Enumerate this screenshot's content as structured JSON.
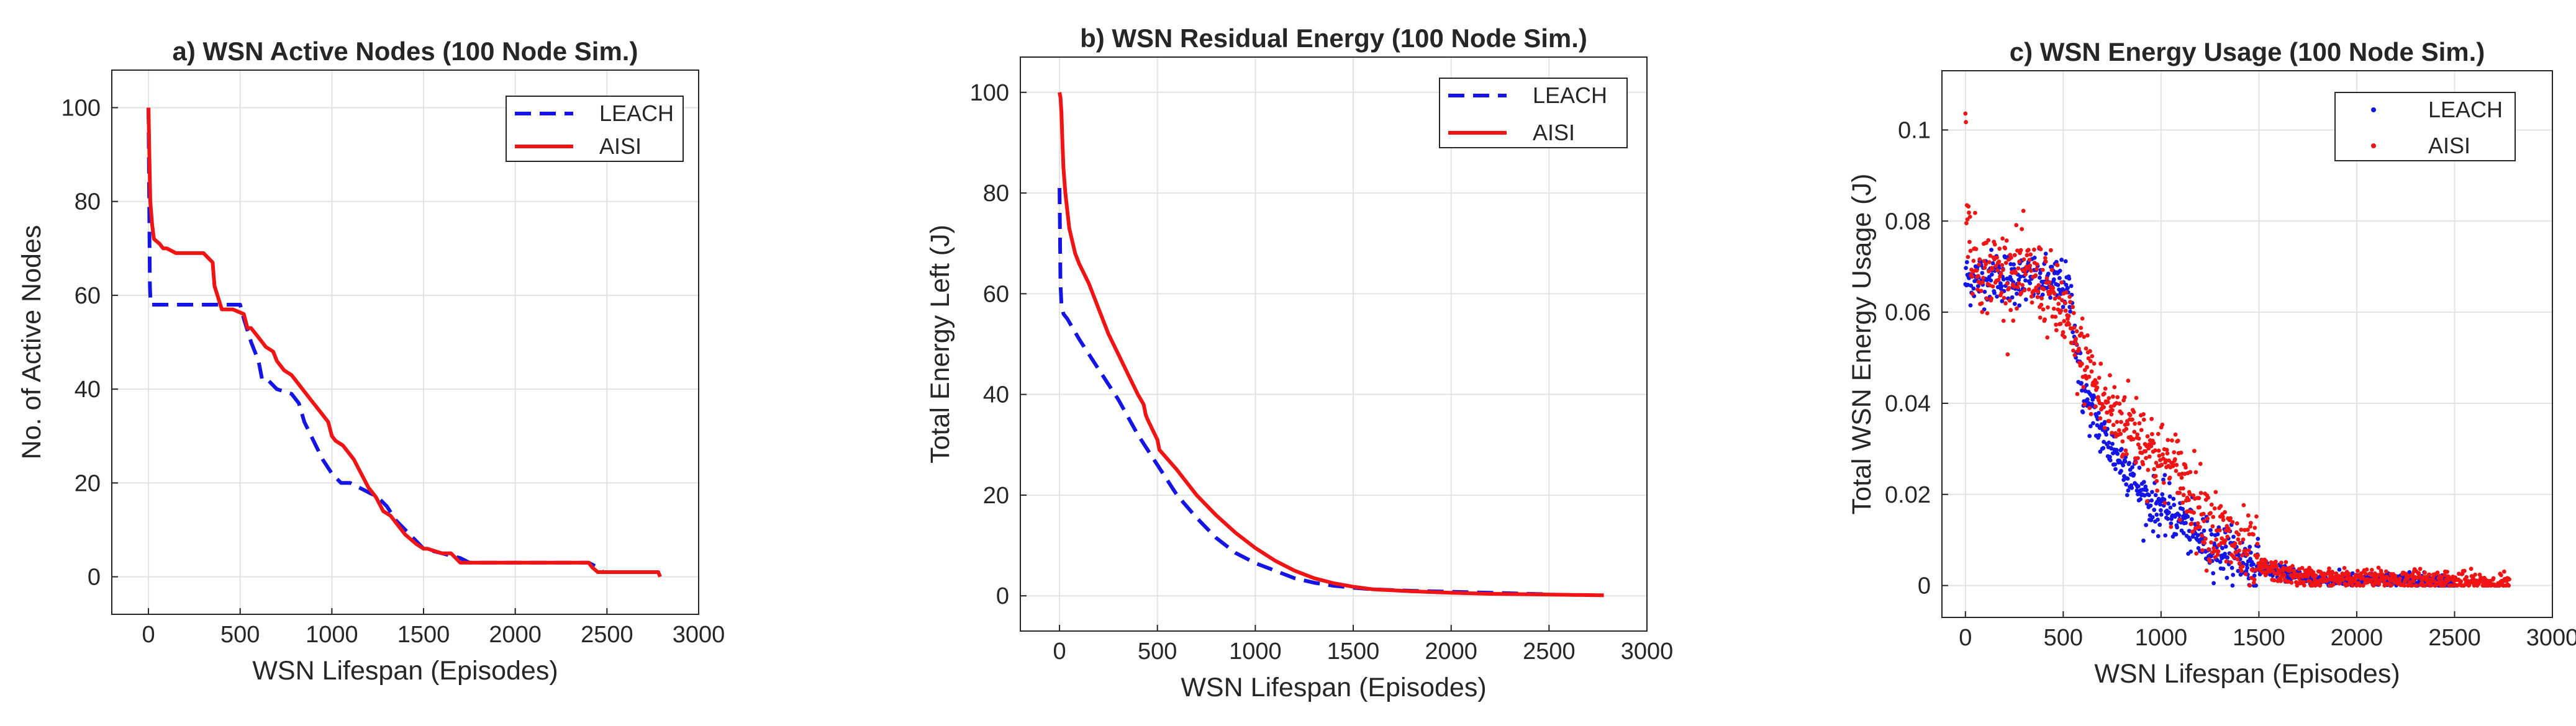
{
  "figure": {
    "colors": {
      "leach": "#1414e6",
      "aisi": "#f01414"
    }
  },
  "chart_data": [
    {
      "type": "line",
      "title": "a) WSN Active Nodes (100 Node Sim.)",
      "xlabel": "WSN Lifespan (Episodes)",
      "ylabel": "No. of Active Nodes",
      "xlim": [
        -200,
        3000
      ],
      "ylim": [
        -8,
        108
      ],
      "xticks": [
        0,
        500,
        1000,
        1500,
        2000,
        2500,
        3000
      ],
      "xtick_labels": [
        "0",
        "500",
        "1000",
        "1500",
        "2000",
        "2500",
        "3000"
      ],
      "yticks": [
        0,
        20,
        40,
        60,
        80,
        100
      ],
      "ytick_labels": [
        "0",
        "20",
        "40",
        "60",
        "80",
        "100"
      ],
      "legend": {
        "position": "top-right",
        "entries": [
          "LEACH",
          "AISI"
        ]
      },
      "series": [
        {
          "name": "LEACH",
          "style": "dashed",
          "x": [
            0,
            2,
            5,
            8,
            12,
            500,
            520,
            560,
            600,
            620,
            650,
            700,
            780,
            820,
            850,
            900,
            950,
            1000,
            1050,
            1100,
            1150,
            1200,
            1250,
            1300,
            1350,
            1400,
            1450,
            1500,
            1600,
            1700,
            1750,
            1800,
            2400,
            2450,
            2480,
            2500
          ],
          "y": [
            100,
            90,
            75,
            62,
            58,
            58,
            55,
            50,
            46,
            42,
            42,
            40,
            39,
            37,
            33,
            29,
            25,
            22,
            20,
            20,
            19,
            18,
            17,
            15,
            12,
            10,
            8,
            6,
            5,
            4,
            3,
            3,
            3,
            2,
            1,
            1
          ]
        },
        {
          "name": "AISI",
          "style": "solid",
          "x": [
            0,
            5,
            10,
            20,
            30,
            60,
            80,
            100,
            150,
            250,
            300,
            350,
            360,
            400,
            460,
            520,
            540,
            560,
            600,
            640,
            680,
            700,
            740,
            780,
            820,
            860,
            900,
            940,
            980,
            1000,
            1020,
            1060,
            1100,
            1120,
            1160,
            1200,
            1240,
            1280,
            1320,
            1360,
            1400,
            1460,
            1500,
            1520,
            1600,
            1650,
            1700,
            1720,
            1760,
            1800,
            2400,
            2420,
            2450,
            2480,
            2780,
            2790
          ],
          "y": [
            100,
            90,
            80,
            75,
            72,
            71,
            70,
            70,
            69,
            69,
            69,
            67,
            62,
            57,
            57,
            56,
            53,
            53,
            51,
            49,
            48,
            46,
            44,
            43,
            41,
            39,
            37,
            35,
            33,
            30,
            29,
            28,
            26,
            25,
            22,
            19,
            17,
            14,
            13,
            11,
            9,
            7,
            6,
            6,
            5,
            5,
            3,
            3,
            3,
            3,
            3,
            2,
            1,
            1,
            1,
            0
          ]
        }
      ]
    },
    {
      "type": "line",
      "title": "b) WSN Residual Energy (100 Node Sim.)",
      "xlabel": "WSN Lifespan (Episodes)",
      "ylabel": "Total Energy Left (J)",
      "xlim": [
        -200,
        3000
      ],
      "ylim": [
        -7,
        107
      ],
      "xticks": [
        0,
        500,
        1000,
        1500,
        2000,
        2500,
        3000
      ],
      "xtick_labels": [
        "0",
        "500",
        "1000",
        "1500",
        "2000",
        "2500",
        "3000"
      ],
      "yticks": [
        0,
        20,
        40,
        60,
        80,
        100
      ],
      "ytick_labels": [
        "0",
        "20",
        "40",
        "60",
        "80",
        "100"
      ],
      "legend": {
        "position": "top-right",
        "entries": [
          "LEACH",
          "AISI"
        ]
      },
      "series": [
        {
          "name": "LEACH",
          "style": "dashed",
          "x": [
            0,
            3,
            5,
            10,
            20,
            40,
            100,
            200,
            300,
            400,
            500,
            600,
            700,
            800,
            900,
            1000,
            1100,
            1200,
            1300,
            1400,
            1500,
            1600,
            1800,
            2000,
            2200,
            2400,
            2500
          ],
          "y": [
            81,
            70,
            62,
            58,
            56,
            55,
            51,
            45,
            39,
            32,
            26,
            20,
            15.5,
            11.5,
            8.5,
            6.5,
            5,
            3.5,
            2.6,
            2,
            1.6,
            1.3,
            1,
            0.8,
            0.6,
            0.4,
            0.3
          ]
        },
        {
          "name": "AISI",
          "style": "solid",
          "x": [
            0,
            5,
            10,
            15,
            20,
            30,
            50,
            80,
            100,
            150,
            200,
            250,
            300,
            350,
            400,
            430,
            440,
            450,
            500,
            510,
            600,
            700,
            800,
            900,
            1000,
            1100,
            1200,
            1300,
            1400,
            1500,
            1600,
            1800,
            2000,
            2200,
            2400,
            2600,
            2780
          ],
          "y": [
            100,
            99,
            96,
            90,
            85,
            80,
            73,
            68,
            66,
            62,
            57,
            52,
            48,
            44,
            40,
            38,
            36,
            35,
            31,
            29,
            25,
            20,
            16,
            12.5,
            9.5,
            7,
            5,
            3.5,
            2.5,
            1.8,
            1.3,
            0.9,
            0.6,
            0.4,
            0.3,
            0.2,
            0.1
          ]
        }
      ]
    },
    {
      "type": "scatter",
      "title": "c) WSN Energy Usage (100 Node Sim.)",
      "xlabel": "WSN Lifespan (Episodes)",
      "ylabel": "Total WSN Energy Usage (J)",
      "xlim": [
        -120,
        3000
      ],
      "ylim": [
        -0.007,
        0.113
      ],
      "xticks": [
        0,
        500,
        1000,
        1500,
        2000,
        2500,
        3000
      ],
      "xtick_labels": [
        "0",
        "500",
        "1000",
        "1500",
        "2000",
        "2500",
        "3000"
      ],
      "yticks": [
        0,
        0.02,
        0.04,
        0.06,
        0.08,
        0.1
      ],
      "ytick_labels": [
        "0",
        "0.02",
        "0.04",
        "0.06",
        "0.08",
        "0.1"
      ],
      "legend": {
        "position": "top-right",
        "entries": [
          "LEACH",
          "AISI"
        ]
      },
      "series": [
        {
          "name": "LEACH",
          "marker": "dot",
          "trend_x": [
            0,
            100,
            200,
            300,
            400,
            500,
            540,
            560,
            580,
            600,
            650,
            700,
            750,
            800,
            850,
            900,
            950,
            1000,
            1050,
            1100,
            1150,
            1200,
            1250,
            1300,
            1350,
            1400,
            1450,
            1500,
            1600,
            1700,
            1750,
            1800,
            2400,
            2450,
            2500
          ],
          "trend_y": [
            0.067,
            0.068,
            0.068,
            0.067,
            0.067,
            0.066,
            0.063,
            0.055,
            0.048,
            0.042,
            0.038,
            0.033,
            0.03,
            0.027,
            0.025,
            0.02,
            0.018,
            0.017,
            0.016,
            0.015,
            0.012,
            0.01,
            0.009,
            0.008,
            0.007,
            0.006,
            0.005,
            0.004,
            0.003,
            0.002,
            0.0015,
            0.0012,
            0.0012,
            0.0008,
            0.0005
          ],
          "noise": 0.0028
        },
        {
          "name": "AISI",
          "marker": "dot",
          "trend_x": [
            0,
            5,
            10,
            20,
            40,
            60,
            100,
            150,
            200,
            300,
            400,
            450,
            500,
            520,
            540,
            560,
            600,
            650,
            700,
            750,
            800,
            850,
            900,
            950,
            1000,
            1050,
            1100,
            1150,
            1200,
            1250,
            1300,
            1350,
            1400,
            1450,
            1500,
            1600,
            1700,
            1800,
            2400,
            2450,
            2480,
            2500,
            2780
          ],
          "trend_y": [
            0.105,
            0.09,
            0.08,
            0.075,
            0.072,
            0.07,
            0.069,
            0.069,
            0.069,
            0.068,
            0.066,
            0.062,
            0.06,
            0.058,
            0.055,
            0.052,
            0.05,
            0.045,
            0.04,
            0.038,
            0.036,
            0.035,
            0.033,
            0.03,
            0.027,
            0.026,
            0.024,
            0.02,
            0.017,
            0.014,
            0.011,
            0.01,
            0.008,
            0.006,
            0.004,
            0.003,
            0.002,
            0.0015,
            0.0012,
            0.0012,
            0.001,
            0.0008,
            0.0005
          ],
          "noise": 0.0045
        }
      ]
    }
  ]
}
